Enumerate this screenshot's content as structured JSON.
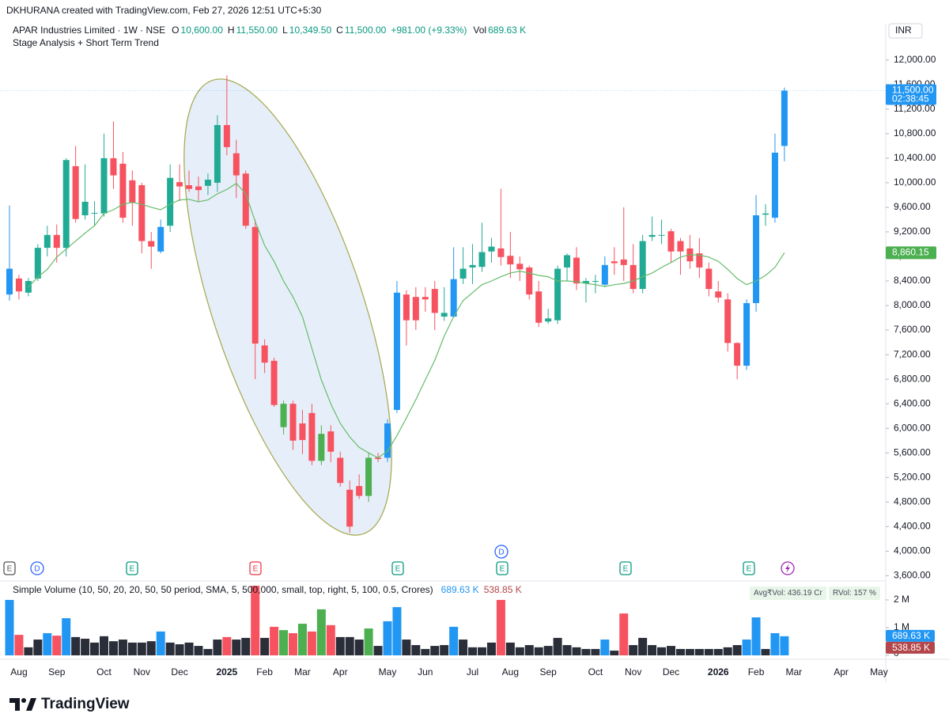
{
  "header": {
    "credit": "DKHURANA created with TradingView.com, Feb 27, 2026 12:51 UTC+5:30",
    "symbol": "APAR Industries Limited · 1W · NSE",
    "ohlc": [
      {
        "key": "O",
        "text": "10,600.00"
      },
      {
        "key": "H",
        "text": "11,550.00"
      },
      {
        "key": "L",
        "text": "10,349.50"
      },
      {
        "key": "C",
        "text": "11,500.00"
      }
    ],
    "change": "+981.00 (+9.33%)",
    "vol_key": "Vol",
    "vol_text": "689.63 K",
    "indicator": "Stage Analysis + Short Term Trend",
    "currency": "INR"
  },
  "footer": {
    "brand": "TradingView"
  },
  "chart_data": {
    "type": "candlestick",
    "categories": [
      null,
      "Aug",
      null,
      null,
      null,
      "Sep",
      null,
      null,
      null,
      null,
      "Oct",
      null,
      null,
      null,
      "Nov",
      null,
      null,
      null,
      "Dec",
      null,
      null,
      null,
      null,
      "2025",
      null,
      null,
      null,
      "Feb",
      null,
      null,
      null,
      "Mar",
      null,
      null,
      null,
      "Apr",
      null,
      null,
      null,
      null,
      "May",
      null,
      null,
      null,
      "Jun",
      null,
      null,
      null,
      null,
      "Jul",
      null,
      null,
      null,
      "Aug",
      null,
      null,
      null,
      "Sep",
      null,
      null,
      null,
      null,
      "Oct",
      null,
      null,
      null,
      "Nov",
      null,
      null,
      null,
      "Dec",
      null,
      null,
      null,
      null,
      "2026",
      null,
      null,
      null,
      "Feb",
      null,
      null,
      null,
      "Mar",
      null,
      null,
      null,
      null,
      "Apr",
      null,
      null,
      null,
      "May"
    ],
    "bold_categories": [
      "2025",
      "2026"
    ],
    "open": [
      8180,
      8440,
      8210,
      8440,
      8940,
      9150,
      8940,
      10270,
      9470,
      9500,
      9500,
      10400,
      10310,
      10040,
      9960,
      9050,
      8880,
      9300,
      10010,
      9960,
      9940,
      9950,
      10000,
      10940,
      10480,
      10150,
      9280,
      7350,
      7100,
      6020,
      6400,
      6080,
      6250,
      5470,
      5950,
      5520,
      5000,
      5060,
      4900,
      5520,
      5520,
      6300,
      8180,
      8140,
      8140,
      8270,
      7820,
      7820,
      8440,
      8620,
      8630,
      8880,
      8930,
      8810,
      8680,
      8620,
      8230,
      7740,
      7760,
      8620,
      8780,
      8360,
      8390,
      8340,
      8720,
      8750,
      8660,
      8270,
      9120,
      9140,
      9210,
      9050,
      8930,
      8850,
      8600,
      8230,
      8100,
      7390,
      7020,
      8040,
      9480,
      9430,
      10600,
      null,
      null,
      null,
      null,
      null,
      null,
      null,
      null,
      null,
      null
    ],
    "high": [
      9630,
      8500,
      8450,
      9000,
      9300,
      9320,
      10400,
      10600,
      10300,
      9700,
      10800,
      11000,
      10500,
      10200,
      10000,
      9200,
      9400,
      10300,
      10300,
      10200,
      10100,
      10150,
      11100,
      11750,
      10700,
      10200,
      9400,
      7450,
      7150,
      6450,
      6450,
      6300,
      6400,
      6050,
      6050,
      5620,
      5150,
      5250,
      5600,
      5600,
      6150,
      8400,
      8250,
      8300,
      8300,
      8400,
      8300,
      8950,
      8950,
      9000,
      9350,
      9100,
      9900,
      9200,
      8800,
      8650,
      8400,
      7950,
      8650,
      8850,
      8950,
      8450,
      8500,
      8800,
      8950,
      9600,
      9000,
      9150,
      9450,
      9400,
      9250,
      9100,
      9150,
      9100,
      8700,
      8400,
      8200,
      7400,
      8100,
      9800,
      9650,
      10800,
      11550,
      null,
      null,
      null,
      null,
      null,
      null,
      null,
      null,
      null,
      null
    ],
    "low": [
      8080,
      8100,
      8150,
      8400,
      8800,
      8700,
      8800,
      9350,
      9400,
      9300,
      9450,
      9900,
      9350,
      9300,
      8850,
      8600,
      8850,
      9200,
      9700,
      9850,
      9700,
      9800,
      9850,
      10450,
      9750,
      9250,
      6800,
      6900,
      6350,
      5900,
      5650,
      5580,
      5400,
      5400,
      5450,
      5050,
      4300,
      4850,
      4800,
      5450,
      5450,
      6250,
      7350,
      7600,
      7900,
      7600,
      7750,
      7800,
      8350,
      8350,
      8550,
      8700,
      8650,
      8450,
      8400,
      8100,
      7650,
      7700,
      7700,
      8400,
      8250,
      8050,
      8200,
      8300,
      8500,
      8400,
      8200,
      8200,
      9050,
      9000,
      8700,
      8500,
      8600,
      8450,
      8150,
      8050,
      7250,
      6800,
      6950,
      7900,
      9300,
      9350,
      10349.5,
      null,
      null,
      null,
      null,
      null,
      null,
      null,
      null,
      null,
      null
    ],
    "close": [
      8600,
      8230,
      8400,
      8940,
      9150,
      8940,
      10370,
      9410,
      9690,
      9510,
      10400,
      10120,
      9430,
      9670,
      9050,
      8960,
      9280,
      10080,
      9940,
      9900,
      9880,
      10050,
      10940,
      10580,
      10120,
      9300,
      7380,
      7070,
      6380,
      6400,
      5800,
      5810,
      5470,
      5910,
      5620,
      5110,
      4400,
      4900,
      5520,
      5500,
      6080,
      8210,
      7760,
      7760,
      8100,
      7880,
      7880,
      8430,
      8600,
      8660,
      8870,
      8960,
      8790,
      8670,
      8590,
      8180,
      7720,
      7790,
      8600,
      8820,
      8360,
      8400,
      8400,
      8660,
      8690,
      8660,
      8270,
      9050,
      9150,
      9150,
      8880,
      8880,
      8720,
      8620,
      8270,
      8130,
      7390,
      7020,
      8040,
      9470,
      9500,
      10490,
      11500,
      null,
      null,
      null,
      null,
      null,
      null,
      null,
      null,
      null,
      null
    ],
    "colors": [
      "#2196f3",
      "#f7525f",
      "#22ab94",
      "#22ab94",
      "#22ab94",
      "#f7525f",
      "#22ab94",
      "#f7525f",
      "#22ab94",
      "#22ab94",
      "#22ab94",
      "#f7525f",
      "#f7525f",
      "#f7525f",
      "#f7525f",
      "#f7525f",
      "#2196f3",
      "#22ab94",
      "#f7525f",
      "#f7525f",
      "#f7525f",
      "#22ab94",
      "#22ab94",
      "#f7525f",
      "#f7525f",
      "#f7525f",
      "#f7525f",
      "#f7525f",
      "#f7525f",
      "#4caf50",
      "#f7525f",
      "#f7525f",
      "#f7525f",
      "#4caf50",
      "#f7525f",
      "#f7525f",
      "#f7525f",
      "#f7525f",
      "#4caf50",
      "#f7525f",
      "#2196f3",
      "#2196f3",
      "#f7525f",
      "#f7525f",
      "#f7525f",
      "#f7525f",
      "#22ab94",
      "#2196f3",
      "#22ab94",
      "#22ab94",
      "#22ab94",
      "#22ab94",
      "#f7525f",
      "#f7525f",
      "#f7525f",
      "#f7525f",
      "#f7525f",
      "#22ab94",
      "#22ab94",
      "#22ab94",
      "#f7525f",
      "#22ab94",
      "#22ab94",
      "#2196f3",
      "#f7525f",
      "#f7525f",
      "#f7525f",
      "#22ab94",
      "#22ab94",
      "#22ab94",
      "#f7525f",
      "#f7525f",
      "#f7525f",
      "#f7525f",
      "#f7525f",
      "#f7525f",
      "#f7525f",
      "#f7525f",
      "#2196f3",
      "#2196f3",
      "#22ab94",
      "#2196f3",
      "#2196f3",
      null,
      null,
      null,
      null,
      null,
      null,
      null,
      null,
      null,
      null
    ],
    "trend": {
      "color": "#66bb6a",
      "values": [
        null,
        null,
        8300,
        8465,
        8590,
        8790,
        8920,
        9050,
        9180,
        9300,
        9500,
        9560,
        9650,
        9680,
        9650,
        9600,
        9560,
        9650,
        9720,
        9730,
        9690,
        9720,
        9820,
        9890,
        9990,
        9820,
        9370,
        8980,
        8720,
        8400,
        8140,
        7820,
        7300,
        6790,
        6400,
        6080,
        5860,
        5690,
        5600,
        5520,
        5630,
        5880,
        6170,
        6470,
        6790,
        7110,
        7500,
        7820,
        8080,
        8210,
        8340,
        8400,
        8470,
        8530,
        8560,
        8530,
        8490,
        8470,
        8400,
        8400,
        8390,
        8360,
        8340,
        8310,
        8340,
        8360,
        8400,
        8470,
        8530,
        8620,
        8700,
        8790,
        8830,
        8820,
        8790,
        8720,
        8590,
        8440,
        8340,
        8400,
        8490,
        8620,
        8860.15,
        null,
        null,
        null,
        null,
        null,
        null,
        null,
        null,
        null,
        null
      ]
    },
    "ylim": [
      3540,
      12590
    ],
    "yticks": [
      {
        "value": 3600,
        "label": "3,600.00"
      },
      {
        "value": 4000,
        "label": "4,000.00"
      },
      {
        "value": 4400,
        "label": "4,400.00"
      },
      {
        "value": 4800,
        "label": "4,800.00"
      },
      {
        "value": 5200,
        "label": "5,200.00"
      },
      {
        "value": 5600,
        "label": "5,600.00"
      },
      {
        "value": 6000,
        "label": "6,000.00"
      },
      {
        "value": 6400,
        "label": "6,400.00"
      },
      {
        "value": 6800,
        "label": "6,800.00"
      },
      {
        "value": 7200,
        "label": "7,200.00"
      },
      {
        "value": 7600,
        "label": "7,600.00"
      },
      {
        "value": 8000,
        "label": "8,000.00"
      },
      {
        "value": 8400,
        "label": "8,400.00"
      },
      {
        "value": 8800,
        "label": "8,800.00"
      },
      {
        "value": 9200,
        "label": "9,200.00"
      },
      {
        "value": 9600,
        "label": "9,600.00"
      },
      {
        "value": 10000,
        "label": "10,000.00"
      },
      {
        "value": 10400,
        "label": "10,400.00"
      },
      {
        "value": 10800,
        "label": "10,800.00"
      },
      {
        "value": 11200,
        "label": "11,200.00"
      },
      {
        "value": 11600,
        "label": "11,600.00"
      },
      {
        "value": 12000,
        "label": "12,000.00"
      }
    ],
    "grid": false,
    "price_tags": [
      {
        "value": 11500,
        "label": "11,500.00",
        "sub": "02:38:45",
        "color": "#2196f3"
      },
      {
        "value": 8860.15,
        "label": "8,860.15",
        "color": "#4caf50"
      }
    ],
    "events": [
      "E",
      "D",
      "E",
      "E",
      "E",
      "D",
      "E",
      "E",
      "E"
    ],
    "volume": {
      "legend": "Simple Volume (10, 50, 20, 20, 50, 50 period, SMA, 5, 500,000, small, top, right, 5, 100, 0.5, Crores)",
      "legend_values": [
        {
          "text": "689.63 K",
          "color": "#2196f3"
        },
        {
          "text": "538.85 K",
          "color": "#b2464a"
        }
      ],
      "stats": [
        "Avg₹Vol: 436.19 Cr",
        "RVol: 157 %"
      ],
      "values": [
        2000000,
        740000,
        290000,
        570000,
        800000,
        710000,
        1340000,
        660000,
        600000,
        460000,
        690000,
        510000,
        570000,
        460000,
        460000,
        510000,
        860000,
        460000,
        400000,
        460000,
        340000,
        230000,
        570000,
        660000,
        570000,
        630000,
        2510000,
        630000,
        1030000,
        910000,
        800000,
        1140000,
        860000,
        1660000,
        1090000,
        660000,
        660000,
        570000,
        970000,
        340000,
        1230000,
        1740000,
        570000,
        370000,
        230000,
        340000,
        370000,
        1030000,
        570000,
        290000,
        290000,
        460000,
        2000000,
        460000,
        290000,
        370000,
        290000,
        340000,
        630000,
        370000,
        290000,
        230000,
        230000,
        570000,
        170000,
        1510000,
        370000,
        630000,
        370000,
        290000,
        340000,
        230000,
        230000,
        230000,
        230000,
        230000,
        290000,
        370000,
        570000,
        1370000,
        230000,
        800000,
        689630,
        null,
        null,
        null,
        null,
        null,
        null,
        null,
        null,
        null,
        null
      ],
      "colors": [
        "#2196f3",
        "#f7525f",
        "#2a2e39",
        "#2a2e39",
        "#2196f3",
        "#f7525f",
        "#2196f3",
        "#2a2e39",
        "#2a2e39",
        "#2a2e39",
        "#2a2e39",
        "#2a2e39",
        "#2a2e39",
        "#2a2e39",
        "#2a2e39",
        "#2a2e39",
        "#2196f3",
        "#2a2e39",
        "#2a2e39",
        "#2a2e39",
        "#2a2e39",
        "#2a2e39",
        "#2a2e39",
        "#f7525f",
        "#2a2e39",
        "#2a2e39",
        "#f7525f",
        "#2a2e39",
        "#f7525f",
        "#4caf50",
        "#f7525f",
        "#4caf50",
        "#f7525f",
        "#4caf50",
        "#f7525f",
        "#2a2e39",
        "#2a2e39",
        "#2a2e39",
        "#4caf50",
        "#2a2e39",
        "#2196f3",
        "#2196f3",
        "#2a2e39",
        "#2a2e39",
        "#2a2e39",
        "#2a2e39",
        "#2a2e39",
        "#2196f3",
        "#2a2e39",
        "#2a2e39",
        "#2a2e39",
        "#2a2e39",
        "#f7525f",
        "#2a2e39",
        "#2a2e39",
        "#2a2e39",
        "#2a2e39",
        "#2a2e39",
        "#2a2e39",
        "#2a2e39",
        "#2a2e39",
        "#2a2e39",
        "#2a2e39",
        "#2196f3",
        "#2a2e39",
        "#f7525f",
        "#2a2e39",
        "#2a2e39",
        "#2a2e39",
        "#2a2e39",
        "#2a2e39",
        "#2a2e39",
        "#2a2e39",
        "#2a2e39",
        "#2a2e39",
        "#2a2e39",
        "#2a2e39",
        "#2a2e39",
        "#2196f3",
        "#2196f3",
        "#2a2e39",
        "#2196f3",
        "#2196f3",
        null,
        null,
        null,
        null,
        null,
        null,
        null,
        null,
        null,
        null
      ],
      "ylim": [
        0,
        2570000
      ],
      "yticks": [
        0,
        {
          "value": 1000000,
          "label": "1 M"
        },
        {
          "value": 2000000,
          "label": "2 M"
        }
      ],
      "tags": [
        {
          "value": 689630,
          "label": "689.63 K",
          "color": "#2196f3"
        },
        {
          "value": 538850,
          "label": "538.85 K",
          "color": "#b2464a"
        }
      ]
    }
  }
}
